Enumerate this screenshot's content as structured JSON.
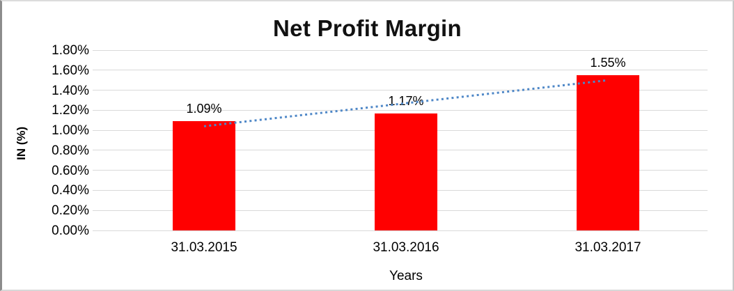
{
  "chart_data": {
    "type": "bar",
    "title": "Net Profit Margin",
    "xlabel": "Years",
    "ylabel": "IN (%)",
    "categories": [
      "31.03.2015",
      "31.03.2016",
      "31.03.2017"
    ],
    "values": [
      1.09,
      1.17,
      1.55
    ],
    "data_labels": [
      "1.09%",
      "1.17%",
      "1.55%"
    ],
    "ytick_labels": [
      "0.00%",
      "0.20%",
      "0.40%",
      "0.60%",
      "0.80%",
      "1.00%",
      "1.20%",
      "1.40%",
      "1.60%",
      "1.80%"
    ],
    "ylim": [
      0,
      1.8
    ],
    "ytick_step": 0.2,
    "grid": true,
    "legend": "none",
    "colors": {
      "bar": "#ff0000",
      "gridline": "#d9d9d9",
      "text": "#000000",
      "trendline": "#4e87c7"
    },
    "trendline": {
      "type": "linear",
      "style": "dotted"
    }
  }
}
